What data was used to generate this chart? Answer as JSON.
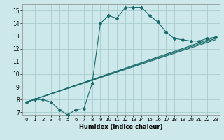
{
  "xlabel": "Humidex (Indice chaleur)",
  "ylabel": "",
  "xlim": [
    -0.5,
    23.5
  ],
  "ylim": [
    6.8,
    15.5
  ],
  "xticks": [
    0,
    1,
    2,
    3,
    4,
    5,
    6,
    7,
    8,
    9,
    10,
    11,
    12,
    13,
    14,
    15,
    16,
    17,
    18,
    19,
    20,
    21,
    22,
    23
  ],
  "yticks": [
    7,
    8,
    9,
    10,
    11,
    12,
    13,
    14,
    15
  ],
  "bg_color": "#cce8ea",
  "grid_color": "#aacccc",
  "line_color": "#1a6b6b",
  "main_line": {
    "x": [
      0,
      1,
      2,
      3,
      4,
      5,
      6,
      7,
      8,
      9,
      10,
      11,
      12,
      13,
      14,
      15,
      16,
      17,
      18,
      19,
      20,
      21,
      22,
      23
    ],
    "y": [
      7.8,
      8.0,
      8.0,
      7.8,
      7.2,
      6.8,
      7.2,
      7.3,
      9.3,
      14.0,
      14.6,
      14.4,
      15.2,
      15.25,
      15.25,
      14.6,
      14.1,
      13.3,
      12.8,
      12.7,
      12.6,
      12.6,
      12.8,
      12.9
    ]
  },
  "reg_lines": [
    {
      "x": [
        0,
        23
      ],
      "y": [
        7.8,
        12.9
      ]
    },
    {
      "x": [
        0,
        23
      ],
      "y": [
        7.8,
        12.8
      ]
    },
    {
      "x": [
        0,
        23
      ],
      "y": [
        7.8,
        12.7
      ]
    }
  ]
}
